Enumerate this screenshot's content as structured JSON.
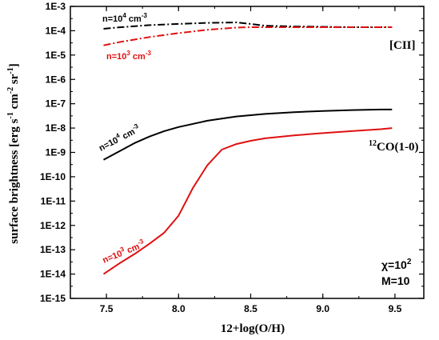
{
  "chart_data": {
    "type": "line",
    "xlabel": "12+log(O/H)",
    "ylabel_parts": [
      "surface brightness [erg s",
      "-1",
      " cm",
      "-2",
      " sr",
      "-1",
      "]"
    ],
    "xlim": [
      7.25,
      9.7
    ],
    "ylim_log10": [
      -15,
      -3
    ],
    "log_y": true,
    "grid": false,
    "x_ticks": [
      7.5,
      8.0,
      8.5,
      9.0,
      9.5
    ],
    "x_tick_labels": [
      "7.5",
      "8.0",
      "8.5",
      "9.0",
      "9.5"
    ],
    "y_tick_labels": [
      "1E-15",
      "1E-14",
      "1E-13",
      "1E-12",
      "1E-11",
      "1E-10",
      "1E-9",
      "1E-8",
      "1E-7",
      "1E-6",
      "1E-5",
      "1E-4",
      "1E-3"
    ],
    "series": [
      {
        "color": "#000000",
        "dash": "dashdot",
        "x": [
          7.48,
          7.6,
          7.8,
          8.0,
          8.2,
          8.4,
          8.5,
          8.6,
          8.8,
          9.0,
          9.2,
          9.4,
          9.48
        ],
        "y": [
          0.00012,
          0.00014,
          0.00017,
          0.00019,
          0.00021,
          0.00022,
          0.00019,
          0.00016,
          0.00015,
          0.000145,
          0.00014,
          0.00014,
          0.00014
        ]
      },
      {
        "color": "#e01010",
        "dash": "dashdot",
        "x": [
          7.48,
          7.6,
          7.8,
          8.0,
          8.2,
          8.4,
          8.5,
          8.6,
          8.8,
          9.0,
          9.2,
          9.4,
          9.48
        ],
        "y": [
          2.5e-05,
          3.5e-05,
          5.5e-05,
          8e-05,
          0.00011,
          0.000135,
          0.00014,
          0.00014,
          0.00014,
          0.00014,
          0.00014,
          0.00014,
          0.00014
        ]
      },
      {
        "color": "#000000",
        "dash": "solid",
        "x": [
          7.48,
          7.6,
          7.7,
          7.8,
          7.9,
          8.0,
          8.2,
          8.4,
          8.6,
          8.8,
          9.0,
          9.2,
          9.4,
          9.48
        ],
        "y": [
          5e-10,
          1.2e-09,
          2.5e-09,
          4.5e-09,
          7.5e-09,
          1.1e-08,
          2e-08,
          3e-08,
          3.8e-08,
          4.5e-08,
          5e-08,
          5.5e-08,
          5.8e-08,
          5.8e-08
        ]
      },
      {
        "color": "#e01010",
        "dash": "solid",
        "x": [
          7.48,
          7.6,
          7.7,
          7.8,
          7.9,
          8.0,
          8.1,
          8.2,
          8.3,
          8.4,
          8.5,
          8.6,
          8.8,
          9.0,
          9.2,
          9.4,
          9.48
        ],
        "y": [
          1e-14,
          3e-14,
          7e-14,
          1.8e-13,
          5e-13,
          2.5e-12,
          3.5e-11,
          3e-10,
          1.3e-09,
          2.2e-09,
          3e-09,
          3.8e-09,
          5e-09,
          6.2e-09,
          7.5e-09,
          9e-09,
          1e-08
        ]
      }
    ],
    "annotations": {
      "cii_n4": {
        "base": "n=10",
        "sup": "4",
        "unit": " cm",
        "unit_sup": "-3",
        "color": "#000000"
      },
      "cii_n3": {
        "base": "n=10",
        "sup": "3",
        "unit": " cm",
        "unit_sup": "-3",
        "color": "#e01010"
      },
      "cii_label": "[CII]",
      "co_n4": {
        "base": "n=10",
        "sup": "4",
        "unit": " cm",
        "unit_sup": "-3",
        "color": "#000000"
      },
      "co_n3": {
        "base": "n=10",
        "sup": "3",
        "unit": " cm",
        "unit_sup": "-3",
        "color": "#e01010"
      },
      "co_label": {
        "sup": "12",
        "text": "CO(1-0)"
      },
      "chi": {
        "sym": "χ=10",
        "sup": "2"
      },
      "mass": "M=10"
    }
  }
}
